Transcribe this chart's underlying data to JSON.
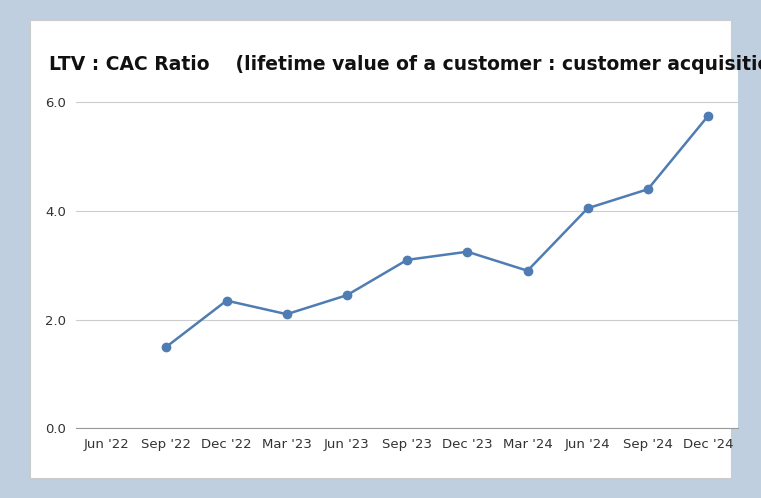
{
  "title": "LTV : CAC Ratio    (lifetime value of a customer : customer acquisition cost)",
  "x_labels": [
    "Jun '22",
    "Sep '22",
    "Dec '22",
    "Mar '23",
    "Jun '23",
    "Sep '23",
    "Dec '23",
    "Mar '24",
    "Jun '24",
    "Sep '24",
    "Dec '24"
  ],
  "y_values": [
    null,
    1.5,
    2.35,
    2.1,
    2.45,
    3.1,
    3.25,
    2.9,
    4.05,
    4.4,
    5.75
  ],
  "line_color": "#4f7db3",
  "marker_color": "#4f7db3",
  "ylim": [
    0.0,
    6.6
  ],
  "yticks": [
    0.0,
    2.0,
    4.0,
    6.0
  ],
  "background_outer": "#bfcfdf",
  "background_inner": "#ffffff",
  "title_fontsize": 13.5,
  "axis_label_fontsize": 9.5,
  "marker_size": 6,
  "line_width": 1.8,
  "grid_color": "#cccccc",
  "spine_color": "#999999"
}
